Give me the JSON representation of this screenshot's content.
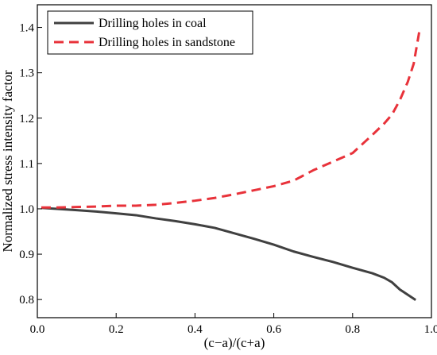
{
  "chart_data": {
    "type": "line",
    "xlabel": "(c−a)/(c+a)",
    "ylabel": "Normalized stress intensity factor",
    "xlim": [
      0.0,
      1.0
    ],
    "ylim": [
      0.76,
      1.45
    ],
    "xticks": [
      0.0,
      0.2,
      0.4,
      0.6,
      0.8,
      1.0
    ],
    "xtick_labels": [
      "0.0",
      "0.2",
      "0.4",
      "0.6",
      "0.8",
      "1.0"
    ],
    "yticks": [
      0.8,
      0.9,
      1.0,
      1.1,
      1.2,
      1.3,
      1.4
    ],
    "ytick_labels": [
      "0.8",
      "0.9",
      "1.0",
      "1.1",
      "1.2",
      "1.3",
      "1.4"
    ],
    "grid": false,
    "legend_position": "top-left",
    "series": [
      {
        "name": "Drilling holes in coal",
        "color": "#404040",
        "style": "solid",
        "x": [
          0.01,
          0.05,
          0.1,
          0.15,
          0.2,
          0.25,
          0.3,
          0.35,
          0.4,
          0.45,
          0.5,
          0.55,
          0.6,
          0.65,
          0.7,
          0.75,
          0.8,
          0.85,
          0.88,
          0.9,
          0.92,
          0.96
        ],
        "y": [
          1.002,
          1.0,
          0.997,
          0.994,
          0.99,
          0.986,
          0.979,
          0.973,
          0.966,
          0.958,
          0.946,
          0.934,
          0.921,
          0.906,
          0.894,
          0.883,
          0.87,
          0.858,
          0.848,
          0.838,
          0.822,
          0.799
        ]
      },
      {
        "name": "Drilling holes in sandstone",
        "color": "#e8323a",
        "style": "dashed",
        "x": [
          0.01,
          0.05,
          0.1,
          0.15,
          0.2,
          0.25,
          0.3,
          0.35,
          0.4,
          0.45,
          0.5,
          0.55,
          0.6,
          0.65,
          0.7,
          0.75,
          0.8,
          0.85,
          0.88,
          0.9,
          0.92,
          0.94,
          0.955,
          0.97
        ],
        "y": [
          1.003,
          1.003,
          1.004,
          1.005,
          1.007,
          1.007,
          1.009,
          1.013,
          1.018,
          1.024,
          1.032,
          1.041,
          1.05,
          1.062,
          1.085,
          1.104,
          1.123,
          1.163,
          1.188,
          1.208,
          1.24,
          1.28,
          1.32,
          1.395
        ]
      }
    ]
  }
}
